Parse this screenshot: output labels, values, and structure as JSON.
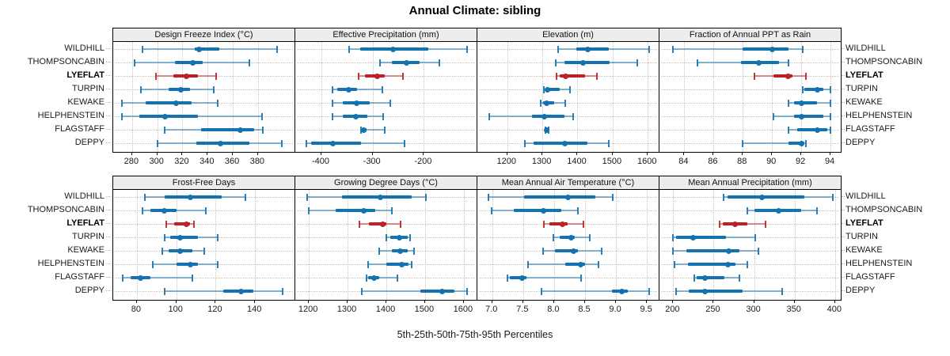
{
  "title": "Annual Climate: sibling",
  "xlabel": "5th-25th-50th-75th-95th Percentiles",
  "stations": [
    "WILDHILL",
    "THOMPSONCABIN",
    "LYEFLAT",
    "TURPIN",
    "KEWAKE",
    "HELPHENSTEIN",
    "FLAGSTAFF",
    "DEPPY"
  ],
  "highlight_station": "LYEFLAT",
  "percentile_labels": [
    "5th",
    "25th",
    "50th",
    "75th",
    "95th"
  ],
  "colors": {
    "series_blue": "#1472b0",
    "highlight_red": "#bd2025",
    "strip_bg": "#ededed",
    "panel_border": "#000000",
    "grid": "#c3c3c3",
    "text": "#1a1a1a"
  },
  "chart_data": [
    {
      "type": "dotplot-percentiles",
      "title": "Design Freeze Index (°C)",
      "row": 0,
      "col": 0,
      "xlim": [
        265,
        409
      ],
      "ticks": [
        280,
        300,
        320,
        340,
        360,
        380
      ],
      "tick_labels": [
        "280",
        "300",
        "320",
        "340",
        "360",
        "380"
      ],
      "series": [
        {
          "name": "WILDHILL",
          "values": [
            288,
            330,
            333,
            349,
            395
          ]
        },
        {
          "name": "THOMPSONCABIN",
          "values": [
            282,
            314,
            328,
            336,
            373
          ]
        },
        {
          "name": "LYEFLAT",
          "values": [
            299,
            313,
            323,
            332,
            347
          ]
        },
        {
          "name": "TURPIN",
          "values": [
            287,
            309,
            319,
            326,
            345
          ]
        },
        {
          "name": "KEWAKE",
          "values": [
            272,
            291,
            315,
            327,
            348
          ]
        },
        {
          "name": "HELPHENSTEIN",
          "values": [
            272,
            286,
            306,
            332,
            383
          ]
        },
        {
          "name": "FLAGSTAFF",
          "values": [
            306,
            335,
            366,
            377,
            384
          ]
        },
        {
          "name": "DEPPY",
          "values": [
            300,
            331,
            350,
            373,
            399
          ]
        }
      ]
    },
    {
      "type": "dotplot-percentiles",
      "title": "Effective Precipitation (mm)",
      "row": 0,
      "col": 1,
      "xlim": [
        -451,
        -97
      ],
      "ticks": [
        -400,
        -300,
        -200
      ],
      "tick_labels": [
        "-400",
        "-300",
        "-200"
      ],
      "series": [
        {
          "name": "WILDHILL",
          "values": [
            -346,
            -324,
            -260,
            -192,
            -116
          ]
        },
        {
          "name": "THOMPSONCABIN",
          "values": [
            -285,
            -263,
            -234,
            -208,
            -169
          ]
        },
        {
          "name": "LYEFLAT",
          "values": [
            -327,
            -315,
            -291,
            -277,
            -241
          ]
        },
        {
          "name": "TURPIN",
          "values": [
            -379,
            -369,
            -347,
            -331,
            -281
          ]
        },
        {
          "name": "KEWAKE",
          "values": [
            -378,
            -359,
            -331,
            -305,
            -265
          ]
        },
        {
          "name": "HELPHENSTEIN",
          "values": [
            -378,
            -359,
            -333,
            -311,
            -279
          ]
        },
        {
          "name": "FLAGSTAFF",
          "values": [
            -323,
            -321,
            -317,
            -312,
            -276
          ]
        },
        {
          "name": "DEPPY",
          "values": [
            -429,
            -420,
            -377,
            -323,
            -237
          ]
        }
      ]
    },
    {
      "type": "dotplot-percentiles",
      "title": "Elevation (m)",
      "row": 0,
      "col": 2,
      "xlim": [
        1115,
        1631
      ],
      "ticks": [
        1200,
        1300,
        1400,
        1500,
        1600
      ],
      "tick_labels": [
        "1200",
        "1300",
        "1400",
        "1500",
        "1600"
      ],
      "series": [
        {
          "name": "WILDHILL",
          "values": [
            1345,
            1397,
            1429,
            1489,
            1605
          ]
        },
        {
          "name": "THOMPSONCABIN",
          "values": [
            1337,
            1363,
            1415,
            1491,
            1571
          ]
        },
        {
          "name": "LYEFLAT",
          "values": [
            1341,
            1350,
            1367,
            1421,
            1456
          ]
        },
        {
          "name": "TURPIN",
          "values": [
            1305,
            1309,
            1315,
            1350,
            1378
          ]
        },
        {
          "name": "KEWAKE",
          "values": [
            1296,
            1302,
            1313,
            1334,
            1365
          ]
        },
        {
          "name": "HELPHENSTEIN",
          "values": [
            1149,
            1270,
            1305,
            1362,
            1387
          ]
        },
        {
          "name": "FLAGSTAFF",
          "values": [
            1309,
            1311,
            1313,
            1315,
            1317
          ]
        },
        {
          "name": "DEPPY",
          "values": [
            1250,
            1276,
            1365,
            1429,
            1490
          ]
        }
      ]
    },
    {
      "type": "dotplot-percentiles",
      "title": "Fraction of Annual PPT as Rain",
      "row": 0,
      "col": 3,
      "xlim": [
        82.3,
        94.7
      ],
      "ticks": [
        84,
        86,
        88,
        90,
        92,
        94
      ],
      "tick_labels": [
        "84",
        "86",
        "88",
        "90",
        "92",
        "94"
      ],
      "series": [
        {
          "name": "WILDHILL",
          "values": [
            83.2,
            88.0,
            90.0,
            91.1,
            92.1
          ]
        },
        {
          "name": "THOMPSONCABIN",
          "values": [
            84.9,
            87.9,
            89.1,
            90.5,
            91.1
          ]
        },
        {
          "name": "LYEFLAT",
          "values": [
            88.8,
            90.1,
            91.1,
            91.4,
            92.3
          ]
        },
        {
          "name": "TURPIN",
          "values": [
            92.1,
            92.2,
            93.1,
            93.5,
            94.0
          ]
        },
        {
          "name": "KEWAKE",
          "values": [
            91.1,
            91.5,
            92.0,
            93.1,
            94.0
          ]
        },
        {
          "name": "HELPHENSTEIN",
          "values": [
            90.1,
            91.5,
            92.0,
            93.5,
            94.0
          ]
        },
        {
          "name": "FLAGSTAFF",
          "values": [
            91.1,
            91.7,
            93.1,
            93.8,
            94.0
          ]
        },
        {
          "name": "DEPPY",
          "values": [
            88.0,
            91.1,
            92.0,
            92.2,
            92.3
          ]
        }
      ]
    },
    {
      "type": "dotplot-percentiles",
      "title": "Frost-Free Days",
      "row": 1,
      "col": 0,
      "xlim": [
        68,
        160
      ],
      "ticks": [
        80,
        100,
        120,
        140
      ],
      "tick_labels": [
        "80",
        "100",
        "120",
        "140"
      ],
      "series": [
        {
          "name": "WILDHILL",
          "values": [
            84,
            94,
            107,
            123,
            135
          ]
        },
        {
          "name": "THOMPSONCABIN",
          "values": [
            83,
            87,
            94,
            100,
            115
          ]
        },
        {
          "name": "LYEFLAT",
          "values": [
            95,
            99,
            105,
            107,
            109
          ]
        },
        {
          "name": "TURPIN",
          "values": [
            94,
            97,
            102,
            111,
            121
          ]
        },
        {
          "name": "KEWAKE",
          "values": [
            93,
            96,
            102,
            108,
            114
          ]
        },
        {
          "name": "HELPHENSTEIN",
          "values": [
            88,
            100,
            107,
            111,
            121
          ]
        },
        {
          "name": "FLAGSTAFF",
          "values": [
            73,
            77,
            82,
            87,
            108
          ]
        },
        {
          "name": "DEPPY",
          "values": [
            94,
            124,
            133,
            139,
            154
          ]
        }
      ]
    },
    {
      "type": "dotplot-percentiles",
      "title": "Growing Degree Days (°C)",
      "row": 1,
      "col": 1,
      "xlim": [
        1165,
        1633
      ],
      "ticks": [
        1200,
        1300,
        1400,
        1500,
        1600
      ],
      "tick_labels": [
        "1200",
        "1300",
        "1400",
        "1500",
        "1600"
      ],
      "series": [
        {
          "name": "WILDHILL",
          "values": [
            1195,
            1285,
            1385,
            1466,
            1503
          ]
        },
        {
          "name": "THOMPSONCABIN",
          "values": [
            1200,
            1270,
            1342,
            1371,
            1414
          ]
        },
        {
          "name": "LYEFLAT",
          "values": [
            1330,
            1355,
            1390,
            1400,
            1436
          ]
        },
        {
          "name": "TURPIN",
          "values": [
            1400,
            1410,
            1433,
            1456,
            1461
          ]
        },
        {
          "name": "KEWAKE",
          "values": [
            1382,
            1414,
            1436,
            1456,
            1471
          ]
        },
        {
          "name": "HELPHENSTEIN",
          "values": [
            1354,
            1399,
            1439,
            1458,
            1466
          ]
        },
        {
          "name": "FLAGSTAFF",
          "values": [
            1349,
            1353,
            1368,
            1382,
            1428
          ]
        },
        {
          "name": "DEPPY",
          "values": [
            1337,
            1487,
            1544,
            1575,
            1608
          ]
        }
      ]
    },
    {
      "type": "dotplot-percentiles",
      "title": "Mean Annual Air Temperature (°C)",
      "row": 1,
      "col": 2,
      "xlim": [
        6.76,
        9.69
      ],
      "ticks": [
        7.0,
        7.5,
        8.0,
        8.5,
        9.0,
        9.5
      ],
      "tick_labels": [
        "7.0",
        "7.5",
        "8.0",
        "8.5",
        "9.0",
        "9.5"
      ],
      "series": [
        {
          "name": "WILDHILL",
          "values": [
            6.94,
            7.52,
            8.23,
            8.67,
            8.95
          ]
        },
        {
          "name": "THOMPSONCABIN",
          "values": [
            6.99,
            7.35,
            7.83,
            8.11,
            8.39
          ]
        },
        {
          "name": "LYEFLAT",
          "values": [
            7.84,
            7.93,
            8.14,
            8.22,
            8.48
          ]
        },
        {
          "name": "TURPIN",
          "values": [
            7.99,
            8.09,
            8.27,
            8.34,
            8.58
          ]
        },
        {
          "name": "KEWAKE",
          "values": [
            7.82,
            8.01,
            8.31,
            8.39,
            8.77
          ]
        },
        {
          "name": "HELPHENSTEIN",
          "values": [
            7.58,
            8.18,
            8.43,
            8.5,
            8.72
          ]
        },
        {
          "name": "FLAGSTAFF",
          "values": [
            7.25,
            7.29,
            7.48,
            7.55,
            8.44
          ]
        },
        {
          "name": "DEPPY",
          "values": [
            7.79,
            8.94,
            9.1,
            9.19,
            9.54
          ]
        }
      ]
    },
    {
      "type": "dotplot-percentiles",
      "title": "Mean Annual Precipitation (mm)",
      "row": 1,
      "col": 3,
      "xlim": [
        183,
        407
      ],
      "ticks": [
        200,
        250,
        300,
        350,
        400
      ],
      "tick_labels": [
        "200",
        "250",
        "300",
        "350",
        "400"
      ],
      "series": [
        {
          "name": "WILDHILL",
          "values": [
            262,
            267,
            310,
            362,
            397
          ]
        },
        {
          "name": "THOMPSONCABIN",
          "values": [
            292,
            300,
            330,
            358,
            378
          ]
        },
        {
          "name": "LYEFLAT",
          "values": [
            257,
            261,
            276,
            292,
            314
          ]
        },
        {
          "name": "TURPIN",
          "values": [
            200,
            204,
            225,
            265,
            301
          ]
        },
        {
          "name": "KEWAKE",
          "values": [
            200,
            216,
            269,
            282,
            305
          ]
        },
        {
          "name": "HELPHENSTEIN",
          "values": [
            202,
            218,
            268,
            277,
            292
          ]
        },
        {
          "name": "FLAGSTAFF",
          "values": [
            226,
            229,
            239,
            263,
            282
          ]
        },
        {
          "name": "DEPPY",
          "values": [
            204,
            219,
            239,
            286,
            335
          ]
        }
      ]
    }
  ]
}
